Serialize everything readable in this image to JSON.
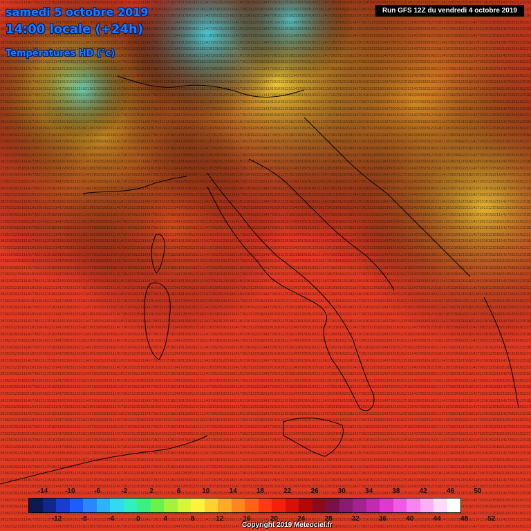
{
  "header": {
    "line1": "samedi 5 octobre 2019",
    "line2": "14:00 locale (+24h)",
    "line3": "Températures HD (°c)"
  },
  "run_label": "Run GFS 12Z du vendredi 4 octobre 2019",
  "copyright": "Copyright 2019 Meteociel.fr",
  "legend": {
    "top_labels": [
      "-14",
      "-10",
      "-6",
      "-2",
      "2",
      "6",
      "10",
      "14",
      "18",
      "22",
      "26",
      "30",
      "34",
      "38",
      "42",
      "46",
      "50"
    ],
    "bottom_labels": [
      "-12",
      "-8",
      "-4",
      "0",
      "4",
      "8",
      "12",
      "16",
      "20",
      "24",
      "28",
      "32",
      "36",
      "40",
      "44",
      "48",
      "52"
    ],
    "colors": [
      "#0b1a52",
      "#12268f",
      "#1a3bd6",
      "#1f5cff",
      "#2d86ff",
      "#2fb2ff",
      "#31d9f2",
      "#2ef0c0",
      "#3bf083",
      "#6cf04a",
      "#a6f23a",
      "#d8f536",
      "#fff23a",
      "#ffd12e",
      "#ffab24",
      "#ff861c",
      "#ff6115",
      "#ff3a10",
      "#f2200d",
      "#d6100a",
      "#b30808",
      "#8c0a1e",
      "#7a0f4a",
      "#8a1a73",
      "#a32390",
      "#c22ab3",
      "#de39d1",
      "#f05be6",
      "#f784f0",
      "#fbb0f6",
      "#fddcfb",
      "#ffffff"
    ]
  },
  "map": {
    "colors": {
      "cold": "#3fd7e8",
      "cool": "#f4e93c",
      "mild": "#f6a82a",
      "warm": "#ec5a1f",
      "hot": "#e03a23"
    }
  }
}
